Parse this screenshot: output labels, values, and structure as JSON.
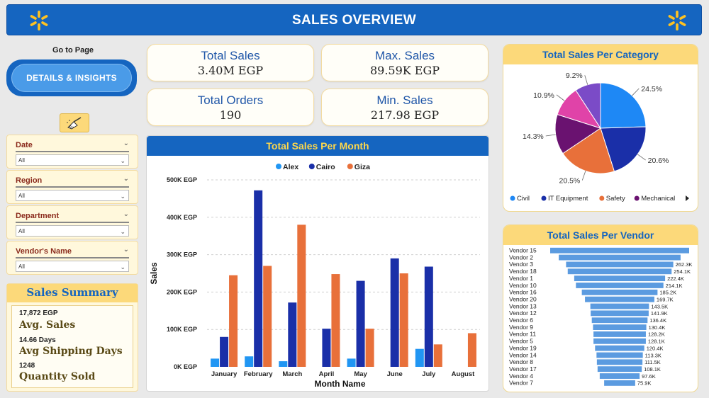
{
  "header": {
    "title": "SALES OVERVIEW"
  },
  "nav": {
    "goto_label": "Go to Page",
    "details_button": "DETAILS & INSIGHTS"
  },
  "filters": [
    {
      "label": "Date",
      "value": "All"
    },
    {
      "label": "Region",
      "value": "All"
    },
    {
      "label": "Department",
      "value": "All"
    },
    {
      "label": "Vendor's Name",
      "value": "All"
    }
  ],
  "summary": {
    "title": "Sales Summary",
    "items": [
      {
        "value": "17,872 EGP",
        "name": "Avg. Sales"
      },
      {
        "value": "14.66 Days",
        "name": "Avg Shipping Days"
      },
      {
        "value": "1248",
        "name": "Quantity Sold"
      }
    ]
  },
  "kpis": {
    "total_sales": {
      "label": "Total Sales",
      "value": "3.40M EGP"
    },
    "max_sales": {
      "label": "Max. Sales",
      "value": "89.59K EGP"
    },
    "total_orders": {
      "label": "Total Orders",
      "value": "190"
    },
    "min_sales": {
      "label": "Min. Sales",
      "value": "217.98  EGP"
    }
  },
  "colors": {
    "accent": "#1565c0",
    "yellow": "#fcd97a",
    "alex": "#2196f3",
    "cairo": "#1a2fa8",
    "giza": "#e8703a"
  },
  "chart_data": [
    {
      "type": "bar",
      "title": "Total Sales Per Month",
      "xlabel": "Month Name",
      "ylabel": "Sales",
      "categories": [
        "January",
        "February",
        "March",
        "April",
        "May",
        "June",
        "July",
        "August"
      ],
      "yticks": [
        "0K EGP",
        "100K EGP",
        "200K EGP",
        "300K EGP",
        "400K EGP",
        "500K EGP"
      ],
      "ylim": [
        0,
        500000
      ],
      "legend_position": "top",
      "series": [
        {
          "name": "Alex",
          "color": "#2196f3",
          "values": [
            22000,
            28000,
            15000,
            0,
            22000,
            0,
            48000,
            0
          ]
        },
        {
          "name": "Cairo",
          "color": "#1a2fa8",
          "values": [
            80000,
            472000,
            172000,
            102000,
            230000,
            290000,
            268000,
            0
          ]
        },
        {
          "name": "Giza",
          "color": "#e8703a",
          "values": [
            245000,
            270000,
            380000,
            248000,
            102000,
            250000,
            60000,
            90000
          ]
        }
      ]
    },
    {
      "type": "pie",
      "title": "Total Sales Per Category",
      "slices": [
        {
          "name": "Civil",
          "value": 24.5,
          "label": "24.5%",
          "color": "#1e88f5"
        },
        {
          "name": "IT Equipment",
          "value": 20.6,
          "label": "20.6%",
          "color": "#1a2fa8"
        },
        {
          "name": "Safety",
          "value": 20.5,
          "label": "20.5%",
          "color": "#e8703a"
        },
        {
          "name": "Mechanical",
          "value": 14.3,
          "label": "14.3%",
          "color": "#6a1270"
        },
        {
          "name": "",
          "value": 10.9,
          "label": "10.9%",
          "color": "#e043a8"
        },
        {
          "name": "",
          "value": 9.2,
          "label": "9.2%",
          "color": "#7b4bc7"
        }
      ],
      "legend": [
        "Civil",
        "IT Equipment",
        "Safety",
        "Mechanical"
      ],
      "legend_position": "bottom"
    },
    {
      "type": "bar",
      "orientation": "horizontal",
      "title": "Total Sales Per Vendor",
      "categories": [
        "Vendor 15",
        "Vendor 2",
        "Vendor 3",
        "Vendor 18",
        "Vendor 1",
        "Vendor 10",
        "Vendor 16",
        "Vendor 20",
        "Vendor 13",
        "Vendor 12",
        "Vendor 6",
        "Vendor 9",
        "Vendor 11",
        "Vendor 5",
        "Vendor 19",
        "Vendor 14",
        "Vendor 8",
        "Vendor 17",
        "Vendor 4",
        "Vendor 7"
      ],
      "values": [
        340000,
        298000,
        262300,
        254100,
        222400,
        214100,
        185200,
        169700,
        143500,
        141900,
        136400,
        130400,
        128200,
        128100,
        120400,
        113300,
        111500,
        108100,
        97600,
        75900
      ],
      "labels": [
        "",
        "",
        "262.3K",
        "254.1K",
        "222.4K",
        "214.1K",
        "185.2K",
        "169.7K",
        "143.5K",
        "141.9K",
        "136.4K",
        "130.4K",
        "128.2K",
        "128.1K",
        "120.4K",
        "113.3K",
        "111.5K",
        "108.1K",
        "97.6K",
        "75.9K"
      ],
      "color": "#5b9be0"
    }
  ]
}
